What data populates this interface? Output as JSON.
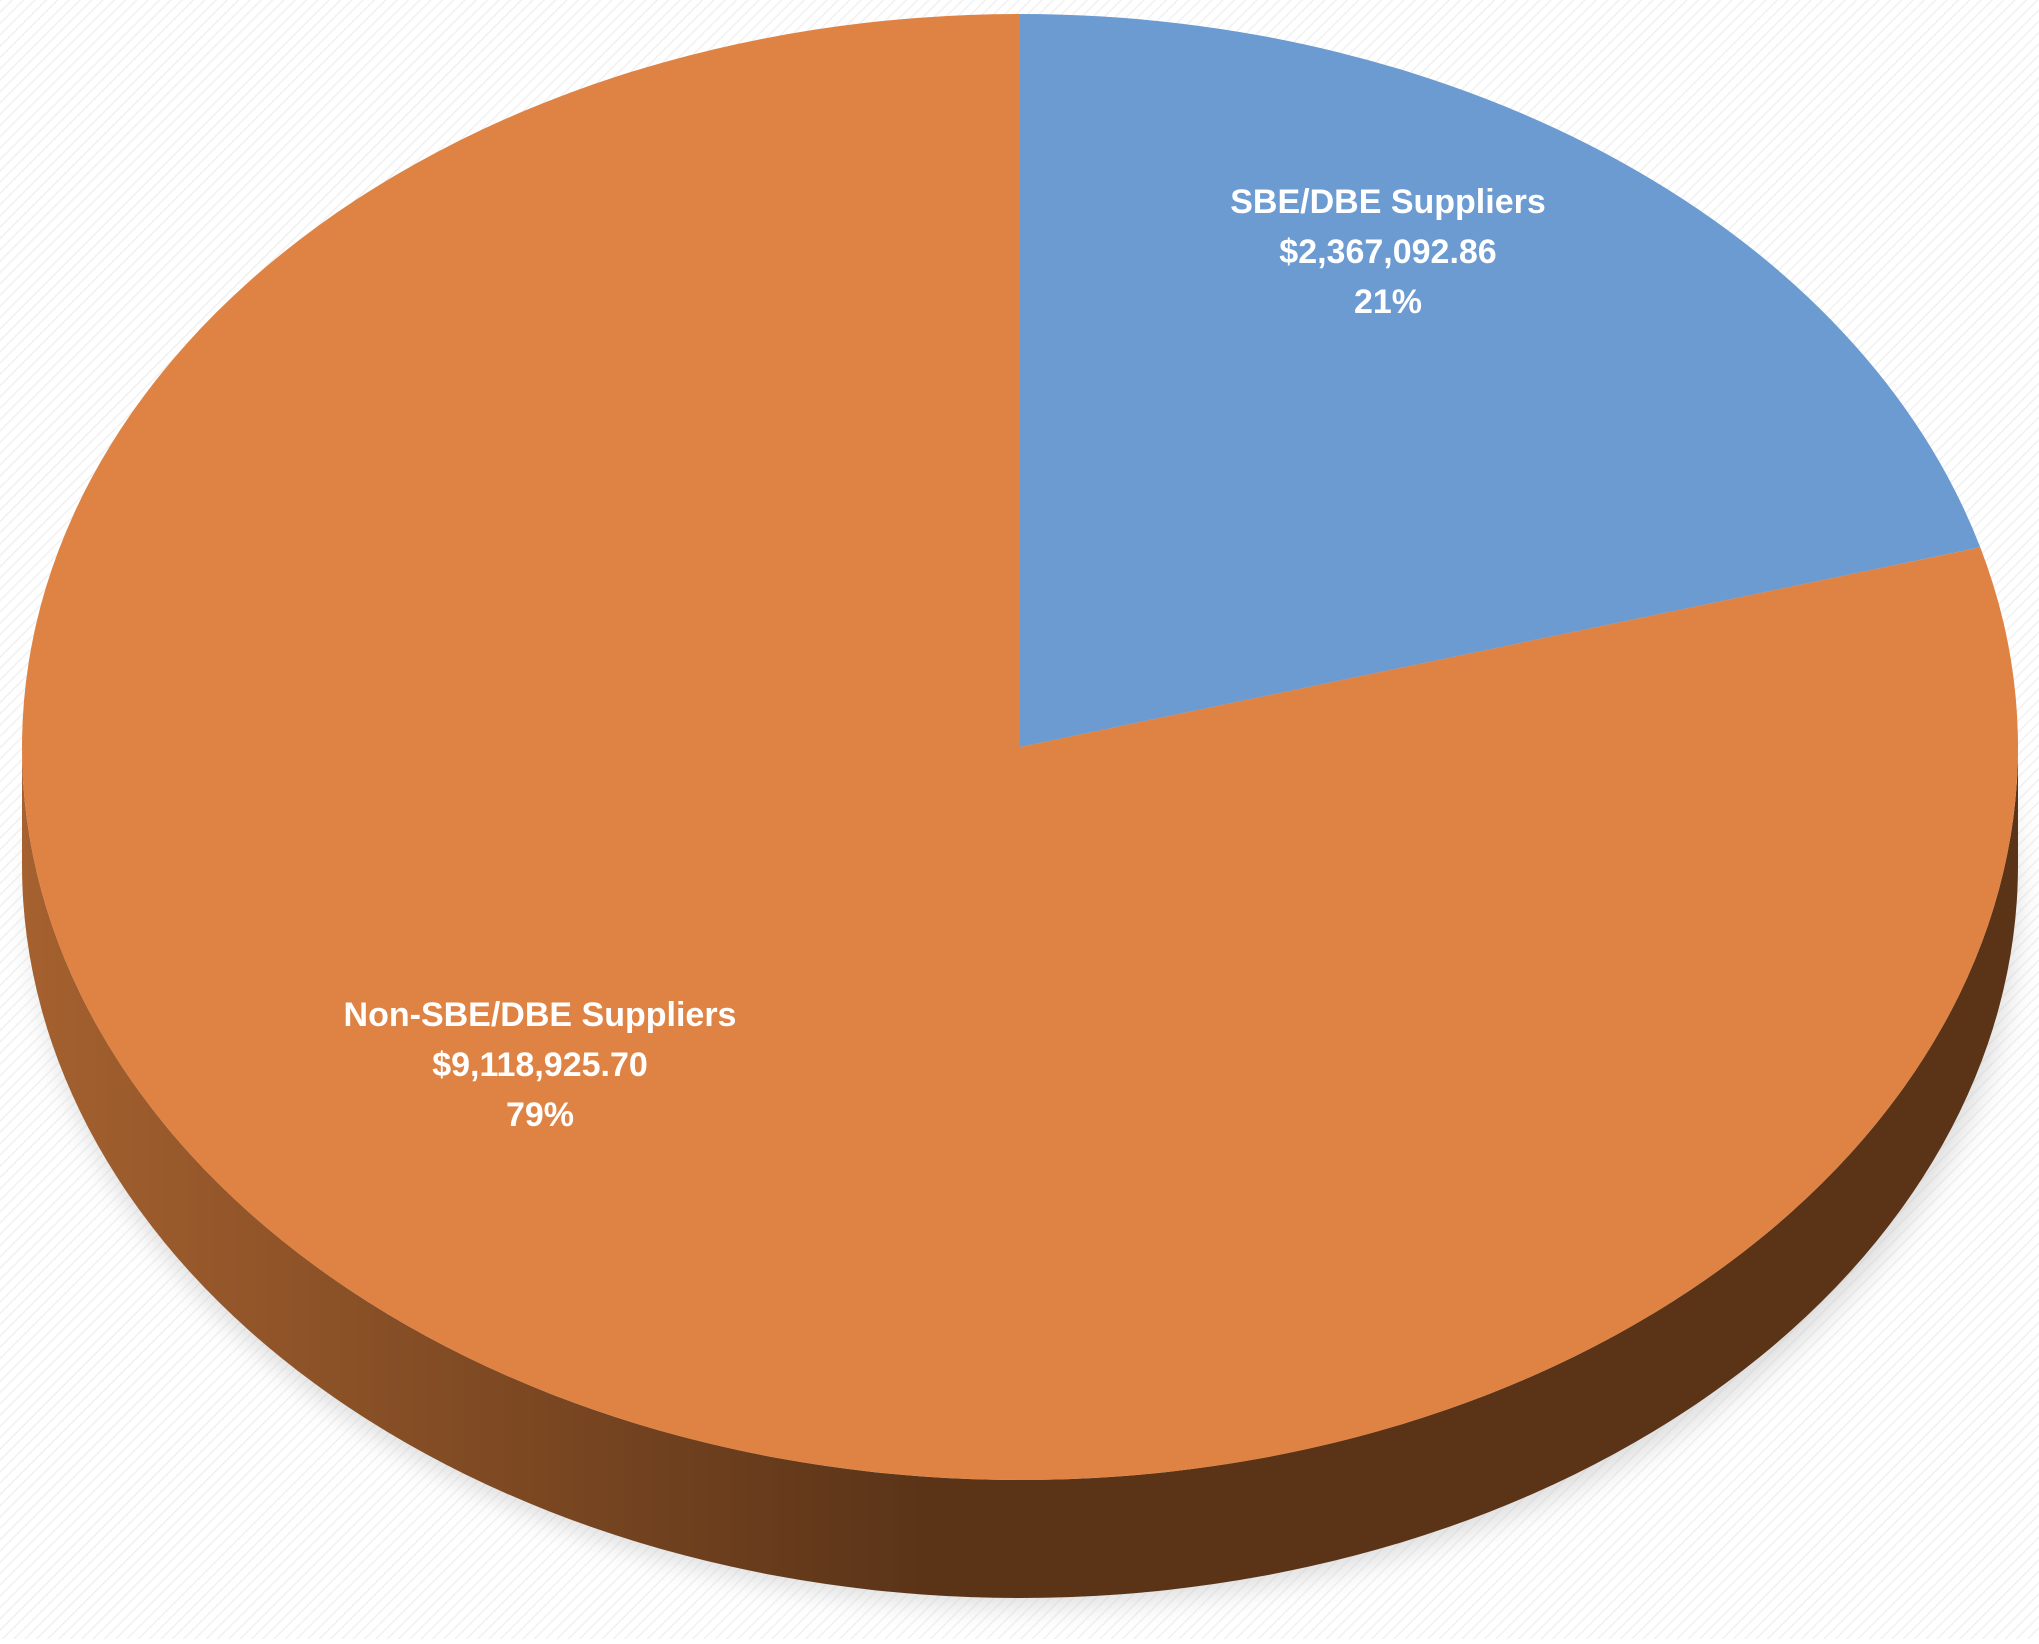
{
  "chart_data": {
    "type": "pie",
    "style": "3d-tilted",
    "legend": "none",
    "slices": [
      {
        "name": "SBE/DBE Suppliers",
        "value": 2367092.86,
        "value_label": "$2,367,092.86",
        "percent_label": "21%",
        "color": "#6b9bd1"
      },
      {
        "name": "Non-SBE/DBE Suppliers",
        "value": 9118925.7,
        "value_label": "$9,118,925.70",
        "percent_label": "79%",
        "color": "#df8345"
      }
    ],
    "side_color_light": "#a5612f",
    "side_color_dark": "#5b3418"
  }
}
